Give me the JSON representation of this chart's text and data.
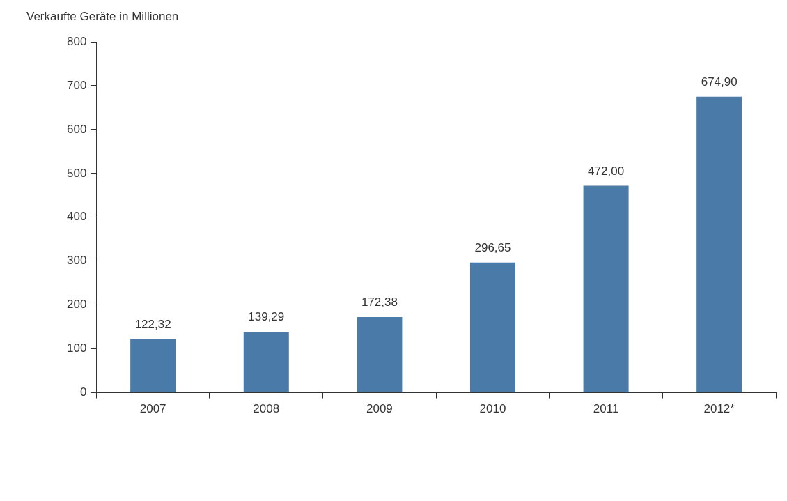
{
  "chart_data": {
    "type": "bar",
    "title": "Verkaufte Geräte in Millionen",
    "categories": [
      "2007",
      "2008",
      "2009",
      "2010",
      "2011",
      "2012*"
    ],
    "values": [
      122.32,
      139.29,
      172.38,
      296.65,
      472.0,
      674.9
    ],
    "value_labels": [
      "122,32",
      "139,29",
      "172,38",
      "296,65",
      "472,00",
      "674,90"
    ],
    "color": "#4a7aa8",
    "ylim": [
      0,
      800
    ],
    "yticks": [
      0,
      100,
      200,
      300,
      400,
      500,
      600,
      700,
      800
    ],
    "grid": false,
    "legend": false
  }
}
